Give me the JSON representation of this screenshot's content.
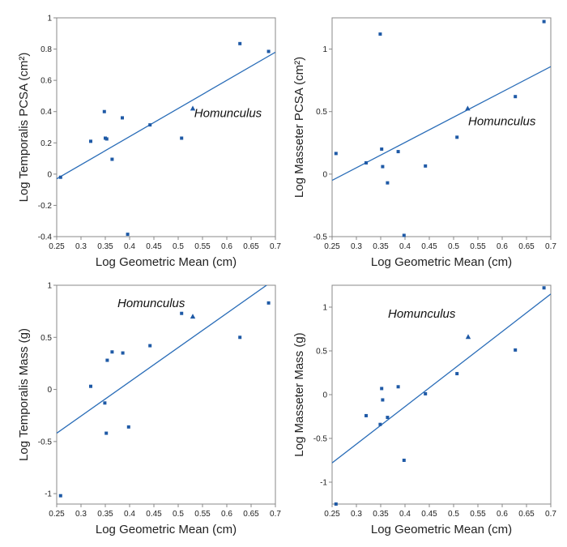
{
  "colors": {
    "marker": "#1f5aa6",
    "line": "#2a6db8",
    "frame": "#888888",
    "text": "#222222"
  },
  "chart_data": [
    {
      "type": "scatter",
      "title": "",
      "xlabel": "Log Geometric Mean (cm)",
      "ylabel": "Log Temporalis PCSA (cm²)",
      "xlim": [
        0.25,
        0.7
      ],
      "ylim": [
        -0.4,
        1
      ],
      "xticks": [
        0.25,
        0.3,
        0.35,
        0.4,
        0.45,
        0.5,
        0.55,
        0.6,
        0.65,
        0.7
      ],
      "xtick_labels": [
        "0.25",
        "0.3",
        "0.35",
        "0.4",
        "0.45",
        "0.5",
        "0.55",
        "0.6",
        "0.65",
        "0.7"
      ],
      "yticks": [
        -0.4,
        -0.2,
        0,
        0.2,
        0.4,
        0.6,
        0.8,
        1
      ],
      "ytick_labels": [
        "-0.4",
        "-0.2",
        "0",
        "0.2",
        "0.4",
        "0.6",
        "0.8",
        "1"
      ],
      "grid": false,
      "points": [
        {
          "x": 0.258,
          "y": -0.02
        },
        {
          "x": 0.32,
          "y": 0.21
        },
        {
          "x": 0.348,
          "y": 0.4
        },
        {
          "x": 0.35,
          "y": 0.23
        },
        {
          "x": 0.353,
          "y": 0.225
        },
        {
          "x": 0.364,
          "y": 0.095
        },
        {
          "x": 0.385,
          "y": 0.36
        },
        {
          "x": 0.396,
          "y": -0.385
        },
        {
          "x": 0.442,
          "y": 0.315
        },
        {
          "x": 0.507,
          "y": 0.23
        },
        {
          "x": 0.627,
          "y": 0.835
        },
        {
          "x": 0.686,
          "y": 0.785
        }
      ],
      "special_point": {
        "x": 0.53,
        "y": 0.42,
        "marker": "triangle"
      },
      "annotation": {
        "text": "Homunculus",
        "x": 0.533,
        "y": 0.365
      },
      "trendline": {
        "x": [
          0.25,
          0.7
        ],
        "y": [
          -0.03,
          0.78
        ]
      }
    },
    {
      "type": "scatter",
      "title": "",
      "xlabel": "Log Geometric Mean (cm)",
      "ylabel": "Log Masseter PCSA (cm²)",
      "xlim": [
        0.25,
        0.7
      ],
      "ylim": [
        -0.5,
        1.25
      ],
      "xticks": [
        0.25,
        0.3,
        0.35,
        0.4,
        0.45,
        0.5,
        0.55,
        0.6,
        0.65,
        0.7
      ],
      "xtick_labels": [
        "0.25",
        "0.3",
        "0.35",
        "0.4",
        "0.45",
        "0.5",
        "0.55",
        "0.6",
        "0.65",
        "0.7"
      ],
      "yticks": [
        -0.5,
        0,
        0.5,
        1
      ],
      "ytick_labels": [
        "-0.5",
        "0",
        "0.5",
        "1"
      ],
      "grid": false,
      "points": [
        {
          "x": 0.258,
          "y": 0.165
        },
        {
          "x": 0.32,
          "y": 0.09
        },
        {
          "x": 0.349,
          "y": 1.12
        },
        {
          "x": 0.352,
          "y": 0.2
        },
        {
          "x": 0.354,
          "y": 0.06
        },
        {
          "x": 0.364,
          "y": -0.07
        },
        {
          "x": 0.386,
          "y": 0.18
        },
        {
          "x": 0.398,
          "y": -0.49
        },
        {
          "x": 0.442,
          "y": 0.065
        },
        {
          "x": 0.507,
          "y": 0.295
        },
        {
          "x": 0.627,
          "y": 0.62
        },
        {
          "x": 0.686,
          "y": 1.22
        }
      ],
      "special_point": {
        "x": 0.529,
        "y": 0.525,
        "marker": "triangle"
      },
      "annotation": {
        "text": "Homunculus",
        "x": 0.53,
        "y": 0.39
      },
      "trendline": {
        "x": [
          0.25,
          0.7
        ],
        "y": [
          -0.05,
          0.86
        ]
      }
    },
    {
      "type": "scatter",
      "title": "",
      "xlabel": "Log Geometric Mean (cm)",
      "ylabel": "Log Temporalis Mass (g)",
      "xlim": [
        0.25,
        0.7
      ],
      "ylim": [
        -1.1,
        1
      ],
      "xticks": [
        0.25,
        0.3,
        0.35,
        0.4,
        0.45,
        0.5,
        0.55,
        0.6,
        0.65,
        0.7
      ],
      "xtick_labels": [
        "0.25",
        "0.3",
        "0.35",
        "0.4",
        "0.45",
        "0.5",
        "0.55",
        "0.6",
        "0.65",
        "0.7"
      ],
      "yticks": [
        -1,
        -0.5,
        0,
        0.5,
        1
      ],
      "ytick_labels": [
        "-1",
        "-0.5",
        "0",
        "0.5",
        "1"
      ],
      "grid": false,
      "points": [
        {
          "x": 0.258,
          "y": -1.02
        },
        {
          "x": 0.32,
          "y": 0.03
        },
        {
          "x": 0.349,
          "y": -0.13
        },
        {
          "x": 0.352,
          "y": -0.42
        },
        {
          "x": 0.354,
          "y": 0.28
        },
        {
          "x": 0.364,
          "y": 0.36
        },
        {
          "x": 0.386,
          "y": 0.35
        },
        {
          "x": 0.398,
          "y": -0.36
        },
        {
          "x": 0.442,
          "y": 0.42
        },
        {
          "x": 0.507,
          "y": 0.73
        },
        {
          "x": 0.627,
          "y": 0.5
        },
        {
          "x": 0.686,
          "y": 0.83
        }
      ],
      "special_point": {
        "x": 0.53,
        "y": 0.7,
        "marker": "triangle"
      },
      "annotation": {
        "text": "Homunculus",
        "x": 0.375,
        "y": 0.79
      },
      "trendline": {
        "x": [
          0.25,
          0.7
        ],
        "y": [
          -0.42,
          1.06
        ]
      }
    },
    {
      "type": "scatter",
      "title": "",
      "xlabel": "Log Geometric Mean (cm)",
      "ylabel": "Log Masseter Mass (g)",
      "xlim": [
        0.25,
        0.7
      ],
      "ylim": [
        -1.25,
        1.25
      ],
      "xticks": [
        0.25,
        0.3,
        0.35,
        0.4,
        0.45,
        0.5,
        0.55,
        0.6,
        0.65,
        0.7
      ],
      "xtick_labels": [
        "0.25",
        "0.3",
        "0.35",
        "0.4",
        "0.45",
        "0.5",
        "0.55",
        "0.6",
        "0.65",
        "0.7"
      ],
      "yticks": [
        -1,
        -0.5,
        0,
        0.5,
        1
      ],
      "ytick_labels": [
        "-1",
        "-0.5",
        "0",
        "0.5",
        "1"
      ],
      "grid": false,
      "points": [
        {
          "x": 0.258,
          "y": -1.25
        },
        {
          "x": 0.32,
          "y": -0.24
        },
        {
          "x": 0.349,
          "y": -0.34
        },
        {
          "x": 0.352,
          "y": 0.07
        },
        {
          "x": 0.354,
          "y": -0.06
        },
        {
          "x": 0.364,
          "y": -0.26
        },
        {
          "x": 0.386,
          "y": 0.09
        },
        {
          "x": 0.398,
          "y": -0.75
        },
        {
          "x": 0.442,
          "y": 0.01
        },
        {
          "x": 0.507,
          "y": 0.24
        },
        {
          "x": 0.627,
          "y": 0.51
        },
        {
          "x": 0.686,
          "y": 1.22
        }
      ],
      "special_point": {
        "x": 0.53,
        "y": 0.66,
        "marker": "triangle"
      },
      "annotation": {
        "text": "Homunculus",
        "x": 0.365,
        "y": 0.88
      },
      "trendline": {
        "x": [
          0.25,
          0.7
        ],
        "y": [
          -0.78,
          1.15
        ]
      }
    }
  ]
}
